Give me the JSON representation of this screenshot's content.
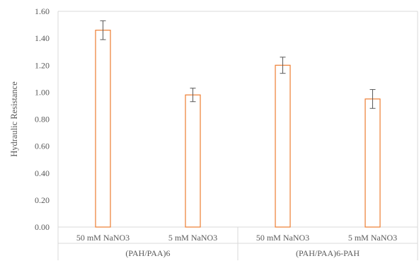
{
  "chart_data": {
    "type": "bar",
    "title": "",
    "ylabel": "Hydraulic Resistance",
    "xlabel": "",
    "ylim": [
      0,
      1.6
    ],
    "yticks": [
      "0.00",
      "0.20",
      "0.40",
      "0.60",
      "0.80",
      "1.00",
      "1.20",
      "1.40",
      "1.60"
    ],
    "groups": [
      "(PAH/PAA)6",
      "(PAH/PAA)6-PAH"
    ],
    "categories": [
      "50 mM NaNO3",
      "5 mM NaNO3",
      "50 mM NaNO3",
      "5 mM NaNO3"
    ],
    "category_group": [
      0,
      0,
      1,
      1
    ],
    "values": [
      1.46,
      0.98,
      1.2,
      0.95
    ],
    "errors": [
      0.07,
      0.05,
      0.06,
      0.07
    ],
    "bar_color": "#ED7D31",
    "error_bar_color": "#595959",
    "grid": false,
    "legend": "none"
  }
}
